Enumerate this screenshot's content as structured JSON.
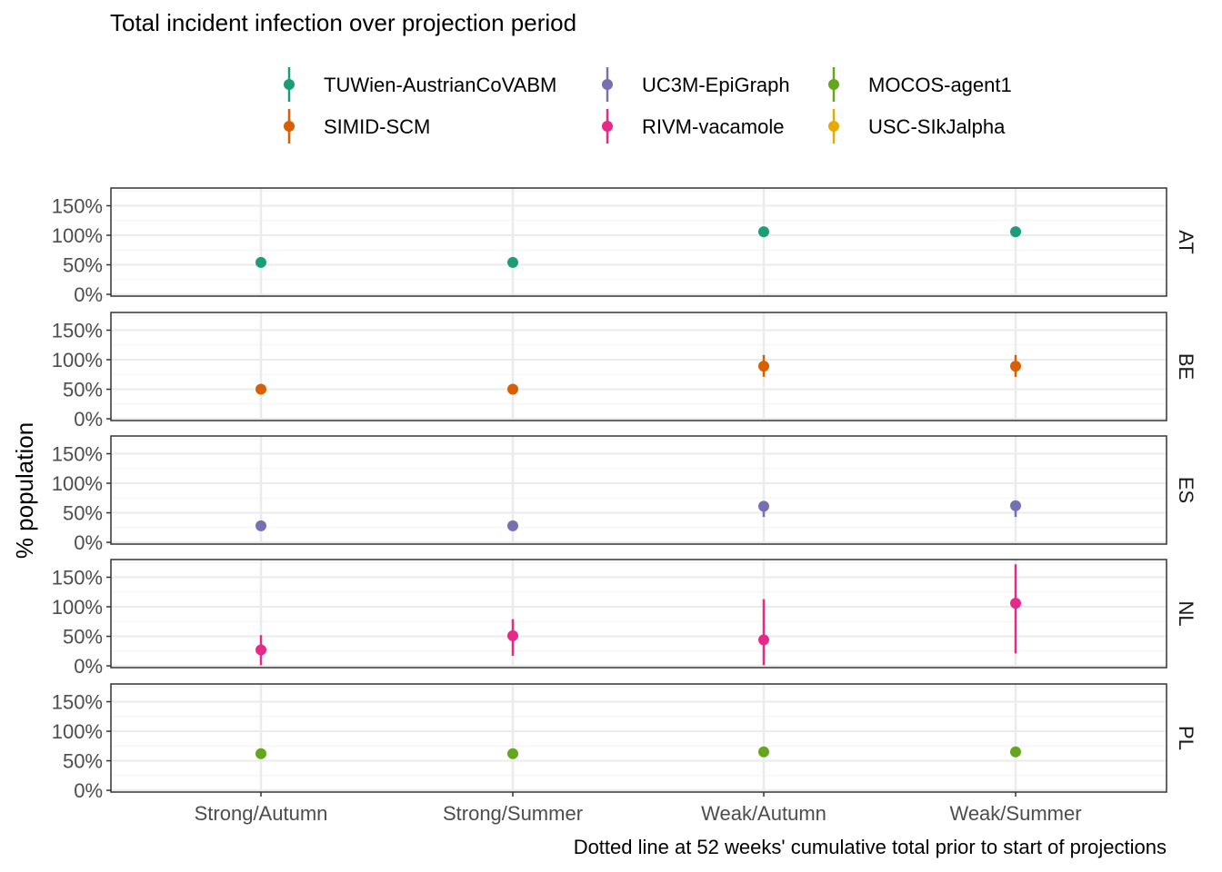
{
  "chart_data": {
    "type": "scatter",
    "title": "Total incident infection over projection period",
    "ylabel": "% population",
    "xlabel": "",
    "caption": "Dotted line at 52 weeks' cumulative total prior to start of projections",
    "categories": [
      "Strong/Autumn",
      "Strong/Summer",
      "Weak/Autumn",
      "Weak/Summer"
    ],
    "y_ticks": [
      0,
      50,
      100,
      150
    ],
    "y_tick_labels": [
      "0%",
      "50%",
      "100%",
      "150%"
    ],
    "ylim": [
      -3,
      180
    ],
    "grid": true,
    "legend": {
      "position": "top",
      "entries": [
        {
          "name": "TUWien-AustrianCoVABM",
          "color": "#1B9E77"
        },
        {
          "name": "UC3M-EpiGraph",
          "color": "#7570B3"
        },
        {
          "name": "MOCOS-agent1",
          "color": "#66A61E"
        },
        {
          "name": "SIMID-SCM",
          "color": "#D95F02"
        },
        {
          "name": "RIVM-vacamole",
          "color": "#E7298A"
        },
        {
          "name": "USC-SIkJalpha",
          "color": "#E6AB02"
        }
      ]
    },
    "panels": [
      {
        "label": "AT",
        "series": "TUWien-AustrianCoVABM",
        "color": "#1B9E77",
        "points": [
          {
            "x": "Strong/Autumn",
            "y": 54,
            "lo": 54,
            "hi": 54
          },
          {
            "x": "Strong/Summer",
            "y": 54,
            "lo": 54,
            "hi": 54
          },
          {
            "x": "Weak/Autumn",
            "y": 106,
            "lo": 106,
            "hi": 106
          },
          {
            "x": "Weak/Summer",
            "y": 106,
            "lo": 106,
            "hi": 106
          }
        ]
      },
      {
        "label": "BE",
        "series": "SIMID-SCM",
        "color": "#D95F02",
        "points": [
          {
            "x": "Strong/Autumn",
            "y": 50,
            "lo": 50,
            "hi": 50
          },
          {
            "x": "Strong/Summer",
            "y": 50,
            "lo": 50,
            "hi": 50
          },
          {
            "x": "Weak/Autumn",
            "y": 89,
            "lo": 71,
            "hi": 108
          },
          {
            "x": "Weak/Summer",
            "y": 89,
            "lo": 71,
            "hi": 108
          }
        ]
      },
      {
        "label": "ES",
        "series": "UC3M-EpiGraph",
        "color": "#7570B3",
        "points": [
          {
            "x": "Strong/Autumn",
            "y": 28,
            "lo": 28,
            "hi": 28
          },
          {
            "x": "Strong/Summer",
            "y": 28,
            "lo": 28,
            "hi": 28
          },
          {
            "x": "Weak/Autumn",
            "y": 61,
            "lo": 43,
            "hi": 61
          },
          {
            "x": "Weak/Summer",
            "y": 62,
            "lo": 43,
            "hi": 62
          }
        ]
      },
      {
        "label": "NL",
        "series": "RIVM-vacamole",
        "color": "#E7298A",
        "points": [
          {
            "x": "Strong/Autumn",
            "y": 27,
            "lo": 1,
            "hi": 52
          },
          {
            "x": "Strong/Summer",
            "y": 51,
            "lo": 17,
            "hi": 79
          },
          {
            "x": "Weak/Autumn",
            "y": 44,
            "lo": 1,
            "hi": 113
          },
          {
            "x": "Weak/Summer",
            "y": 106,
            "lo": 21,
            "hi": 172
          }
        ]
      },
      {
        "label": "PL",
        "series": "MOCOS-agent1",
        "color": "#66A61E",
        "points": [
          {
            "x": "Strong/Autumn",
            "y": 62,
            "lo": 56,
            "hi": 62
          },
          {
            "x": "Strong/Summer",
            "y": 62,
            "lo": 56,
            "hi": 62
          },
          {
            "x": "Weak/Autumn",
            "y": 65,
            "lo": 63,
            "hi": 65
          },
          {
            "x": "Weak/Summer",
            "y": 65,
            "lo": 63,
            "hi": 65
          }
        ]
      }
    ]
  }
}
